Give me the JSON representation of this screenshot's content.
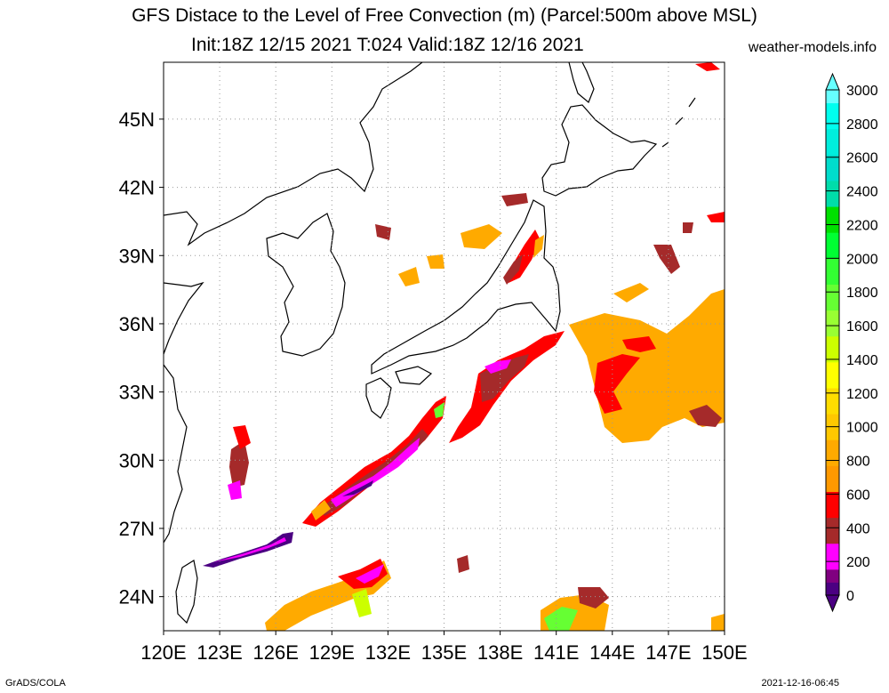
{
  "title": "GFS Distace to the Level of Free Convection (m) (Parcel:500m above MSL)",
  "subtitle": "Init:18Z 12/15 2021 T:024 Valid:18Z 12/16 2021",
  "site": "weather-models.info",
  "footer_left": "GrADS/COLA",
  "footer_right": "2021-12-16-06:45",
  "map": {
    "lon_range": [
      120,
      150
    ],
    "lat_range": [
      22.5,
      47.5
    ],
    "lat_labels": [
      {
        "lat": 45,
        "label": "45N"
      },
      {
        "lat": 42,
        "label": "42N"
      },
      {
        "lat": 39,
        "label": "39N"
      },
      {
        "lat": 36,
        "label": "36N"
      },
      {
        "lat": 33,
        "label": "33N"
      },
      {
        "lat": 30,
        "label": "30N"
      },
      {
        "lat": 27,
        "label": "27N"
      },
      {
        "lat": 24,
        "label": "24N"
      }
    ],
    "lon_labels": [
      {
        "lon": 120,
        "label": "120E"
      },
      {
        "lon": 123,
        "label": "123E"
      },
      {
        "lon": 126,
        "label": "126E"
      },
      {
        "lon": 129,
        "label": "129E"
      },
      {
        "lon": 132,
        "label": "132E"
      },
      {
        "lon": 135,
        "label": "135E"
      },
      {
        "lon": 138,
        "label": "138E"
      },
      {
        "lon": 141,
        "label": "141E"
      },
      {
        "lon": 144,
        "label": "144E"
      },
      {
        "lon": 147,
        "label": "147E"
      },
      {
        "lon": 150,
        "label": "150E"
      }
    ]
  },
  "colorbar": {
    "levels": [
      {
        "value": 0,
        "label": "0"
      },
      {
        "value": 200,
        "label": "200"
      },
      {
        "value": 400,
        "label": "400"
      },
      {
        "value": 600,
        "label": "600"
      },
      {
        "value": 800,
        "label": "800"
      },
      {
        "value": 1000,
        "label": "1000"
      },
      {
        "value": 1200,
        "label": "1200"
      },
      {
        "value": 1400,
        "label": "1400"
      },
      {
        "value": 1600,
        "label": "1600"
      },
      {
        "value": 1800,
        "label": "1800"
      },
      {
        "value": 2000,
        "label": "2000"
      },
      {
        "value": 2200,
        "label": "2200"
      },
      {
        "value": 2400,
        "label": "2400"
      },
      {
        "value": 2600,
        "label": "2600"
      },
      {
        "value": 2800,
        "label": "2800"
      },
      {
        "value": 3000,
        "label": "3000"
      }
    ],
    "colors": [
      "#4b0082",
      "#800080",
      "#ff00ff",
      "#ff00ff",
      "#a52a2a",
      "#a52a2a",
      "#ff0000",
      "#ff0000",
      "#ff9900",
      "#ff9900",
      "#ffaa00",
      "#ffaa00",
      "#ffc800",
      "#ffc800",
      "#ffdd00",
      "#ffdd00",
      "#ffff00",
      "#ffff00",
      "#ccff00",
      "#ccff00",
      "#99ff33",
      "#99ff33",
      "#66ff33",
      "#66ff33",
      "#33ff33",
      "#33ff33",
      "#00ff33",
      "#00ff33",
      "#00e000",
      "#00e000",
      "#00ddaa",
      "#00ddaa",
      "#00ddcc",
      "#00ddcc",
      "#00eedd",
      "#00eedd",
      "#00ffee",
      "#00ffee",
      "#66ffff"
    ],
    "low_arrow_color": "#4b0082",
    "high_arrow_color": "#66ffff"
  }
}
